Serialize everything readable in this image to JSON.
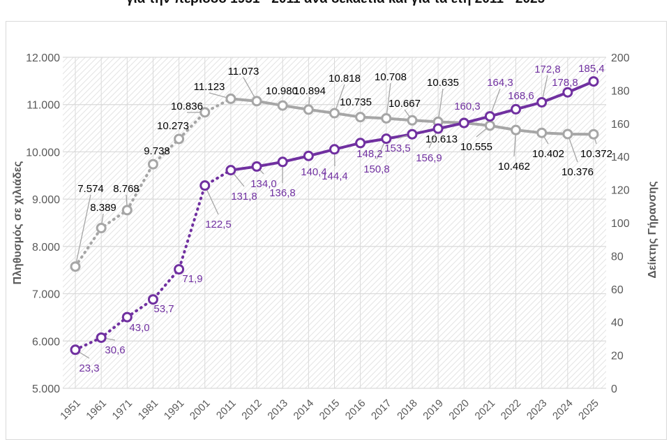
{
  "chart_data": {
    "type": "line",
    "title": "για την περίοδο 1951 - 2011 ανά δεκαετία και για τα έτη 2011 - 2025",
    "categories": [
      "1951",
      "1961",
      "1971",
      "1981",
      "1991",
      "2001",
      "2011",
      "2012",
      "2013",
      "2014",
      "2015",
      "2016",
      "2017",
      "2018",
      "2019",
      "2020",
      "2021",
      "2022",
      "2023",
      "2024",
      "2025"
    ],
    "y_left": {
      "label": "Πληθυσμός σε χιλιάδες",
      "range": [
        5000,
        12000
      ],
      "ticks": [
        "5.000",
        "6.000",
        "7.000",
        "8.000",
        "9.000",
        "10.000",
        "11.000",
        "12.000"
      ]
    },
    "y_right": {
      "label": "Δείκτης Γήρανσης",
      "range": [
        0,
        200
      ],
      "ticks": [
        "0",
        "20",
        "40",
        "60",
        "80",
        "100",
        "120",
        "140",
        "160",
        "180",
        "200"
      ]
    },
    "grid": true,
    "series": [
      {
        "name": "Πληθυσμός",
        "axis": "left",
        "color": "#a6a6a6",
        "label_color": "#000000",
        "values": [
          7574,
          8389,
          8768,
          9738,
          10273,
          10836,
          11123,
          11073,
          10980,
          10894,
          10818,
          10735,
          10708,
          10667,
          10635,
          10613,
          10555,
          10462,
          10402,
          10376,
          10372
        ],
        "labels": [
          "7.574",
          "8.389",
          "8.768",
          "9.738",
          "10.273",
          "10.836",
          "11.123",
          "11.073",
          "10.980",
          "10.894",
          "10.818",
          "10.735",
          "10.708",
          "10.667",
          "10.635",
          "10.613",
          "10.555",
          "10.462",
          "10.402",
          "10.376",
          "10.372"
        ]
      },
      {
        "name": "Δείκτης Γήρανσης",
        "axis": "right",
        "color": "#7030a0",
        "label_color": "#7030a0",
        "values": [
          23.3,
          30.6,
          43.0,
          53.7,
          71.9,
          122.5,
          131.8,
          134.0,
          136.8,
          140.4,
          144.4,
          148.2,
          150.8,
          153.5,
          156.9,
          160.3,
          164.3,
          168.6,
          172.8,
          178.8,
          185.4
        ],
        "labels": [
          "23,3",
          "30,6",
          "43,0",
          "53,7",
          "71,9",
          "122,5",
          "131,8",
          "134,0",
          "136,8",
          "140,4",
          "144,4",
          "148,2",
          "150,8",
          "153,5",
          "156,9",
          "160,3",
          "164,3",
          "168,6",
          "172,8",
          "178,8",
          "185,4"
        ]
      }
    ],
    "line_style_note": "dotted 1951-2011, solid 2011-2025"
  }
}
